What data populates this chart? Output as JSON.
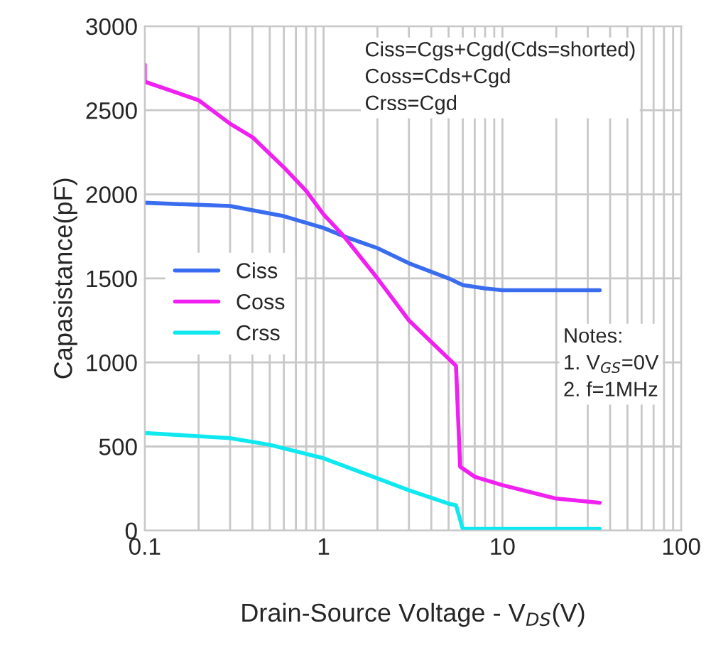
{
  "chart_data": {
    "type": "line",
    "xlabel": "Drain-Source Voltage - V$_{DS}$(V)",
    "ylabel": "Capasistance(pF)",
    "log": "x",
    "xlim": [
      0.1,
      100
    ],
    "xticks": [
      0.1,
      1,
      10,
      100
    ],
    "ylim": [
      0,
      3000
    ],
    "yticks": [
      0,
      500,
      1000,
      1500,
      2000,
      2500,
      3000
    ],
    "grid": true,
    "legend": "center left",
    "series": [
      {
        "name": "Ciss",
        "color": "#3a6cf0",
        "x": [
          0.1,
          0.3,
          0.6,
          1,
          1.3,
          2,
          3,
          5,
          6,
          8,
          10,
          35
        ],
        "values": [
          1950,
          1930,
          1870,
          1800,
          1750,
          1680,
          1590,
          1500,
          1460,
          1440,
          1430,
          1430
        ]
      },
      {
        "name": "Coss",
        "color": "#f020f0",
        "x": [
          0.1,
          0.1,
          0.2,
          0.3,
          0.4,
          0.6,
          0.8,
          1,
          1.3,
          2,
          3,
          5.5,
          5.8,
          7,
          10,
          20,
          35
        ],
        "values": [
          2770,
          2670,
          2560,
          2420,
          2340,
          2160,
          2020,
          1880,
          1750,
          1500,
          1250,
          980,
          380,
          320,
          270,
          190,
          165
        ]
      },
      {
        "name": "Crss",
        "color": "#10e8f0",
        "x": [
          0.1,
          0.3,
          0.5,
          1,
          2,
          3,
          5,
          5.5,
          6,
          35
        ],
        "values": [
          580,
          550,
          510,
          430,
          310,
          240,
          160,
          150,
          10,
          10
        ]
      }
    ],
    "annotations": [
      "Ciss=Cgs+Cgd(Cds=shorted)\nCoss=Cds+Cgd\nCrss=Cgd",
      "Notes:\n1. V$_{GS}$=0V\n2. f=1MHz"
    ]
  }
}
